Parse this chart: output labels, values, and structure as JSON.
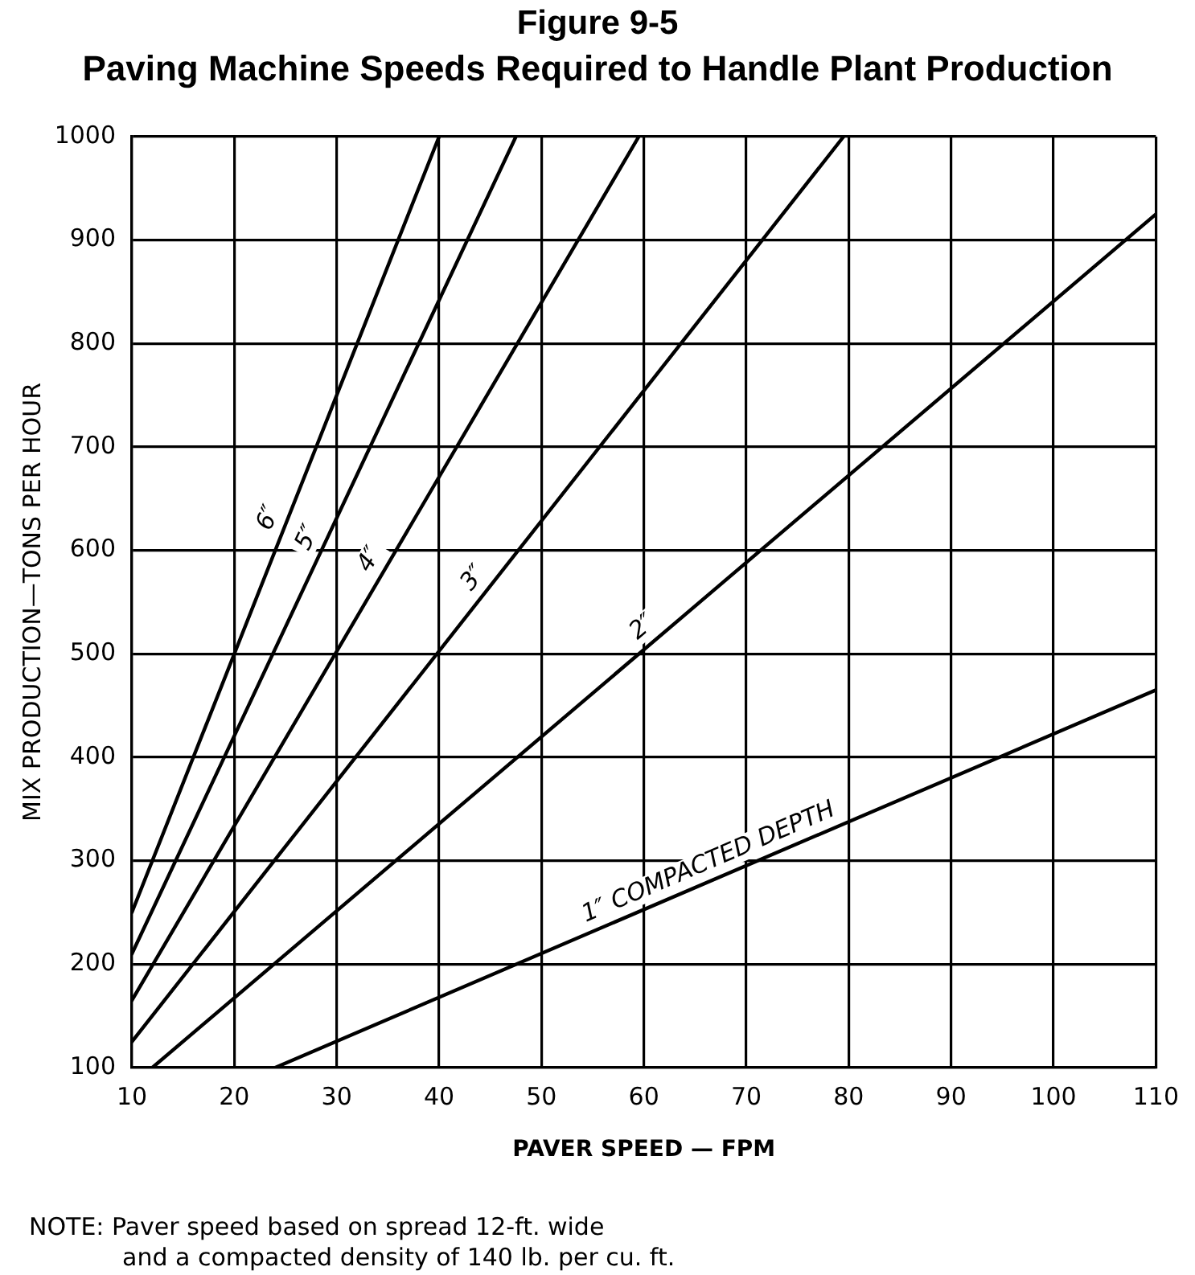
{
  "chart_data": {
    "type": "line",
    "title": "Figure 9-5",
    "subtitle": "Paving Machine Speeds Required to Handle Plant Production",
    "xlabel": "PAVER SPEED — FPM",
    "ylabel": "MIX PRODUCTION—TONS PER HOUR",
    "xlim": [
      10,
      110
    ],
    "xticks": [
      10,
      20,
      30,
      40,
      50,
      60,
      70,
      80,
      90,
      100,
      110
    ],
    "ylim": [
      100,
      1000
    ],
    "yticks": [
      100,
      200,
      300,
      400,
      500,
      600,
      700,
      800,
      900,
      1000
    ],
    "grid": true,
    "legend": false,
    "marker": "none",
    "line_style": "solid",
    "series": [
      {
        "name": "6″",
        "color": "#000000",
        "x": [
          10,
          40
        ],
        "values": [
          250,
          1000
        ]
      },
      {
        "name": "5″",
        "color": "#000000",
        "x": [
          10,
          47.5
        ],
        "values": [
          210,
          1000
        ]
      },
      {
        "name": "4″",
        "color": "#000000",
        "x": [
          10,
          59.5
        ],
        "values": [
          165,
          1000
        ]
      },
      {
        "name": "3″",
        "color": "#000000",
        "x": [
          10,
          79.5
        ],
        "values": [
          125,
          1000
        ]
      },
      {
        "name": "2″",
        "color": "#000000",
        "x": [
          12,
          110
        ],
        "values": [
          100,
          925
        ]
      },
      {
        "name": "1″ COMPACTED DEPTH",
        "color": "#000000",
        "x": [
          24,
          110
        ],
        "values": [
          100,
          465
        ]
      }
    ],
    "annotations": [
      "NOTE: Paver speed based on spread 12-ft. wide\nand a compacted density of 140 lb. per cu. ft."
    ]
  }
}
